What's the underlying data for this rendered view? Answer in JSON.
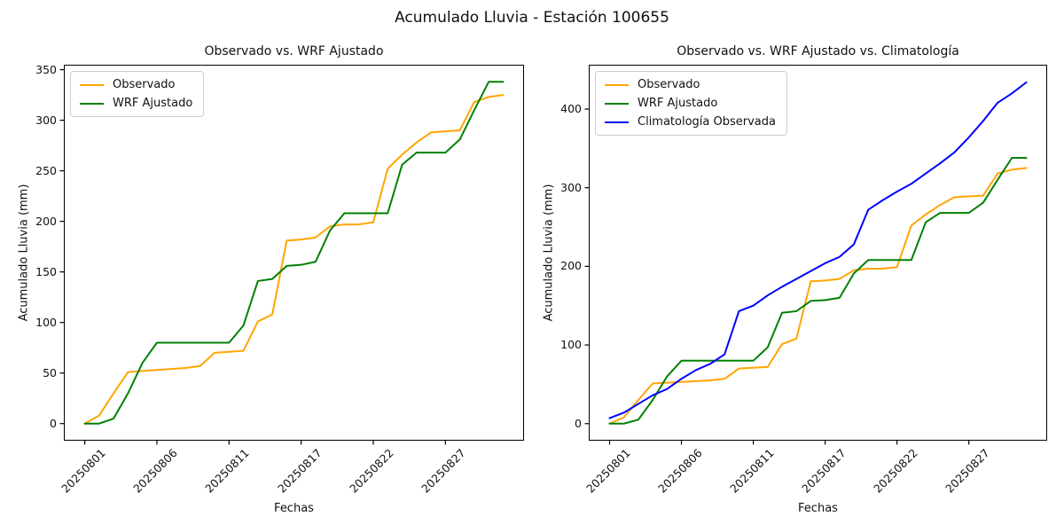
{
  "figure_title": "Acumulado Lluvia - Estación 100655",
  "colors": {
    "observado": "#FFA500",
    "wrf_ajustado": "#008000",
    "climatologia": "#0000FF",
    "spine": "#000000",
    "text": "#111111"
  },
  "chart_data": [
    {
      "type": "line",
      "title": "Observado vs. WRF Ajustado",
      "xlabel": "Fechas",
      "ylabel": "Acumulado Lluvia (mm)",
      "legend_position": "upper left",
      "grid": false,
      "x_tick_indices": [
        0,
        5,
        10,
        15,
        20,
        25
      ],
      "x_tick_labels": [
        "20250801",
        "20250806",
        "20250811",
        "20250817",
        "20250822",
        "20250827"
      ],
      "yticks": [
        0,
        50,
        100,
        150,
        200,
        250,
        300,
        350
      ],
      "ylim": [
        -16.9,
        354.9
      ],
      "series": [
        {
          "name": "Observado",
          "color": "#FFA500",
          "values": [
            0,
            8,
            30,
            51,
            52,
            53,
            54,
            55,
            57,
            70,
            71,
            72,
            101,
            108,
            181,
            182,
            184,
            195,
            197,
            197,
            199,
            252,
            266,
            278,
            288,
            289,
            290,
            318,
            323,
            325
          ]
        },
        {
          "name": "WRF Ajustado",
          "color": "#008000",
          "values": [
            0,
            0,
            5,
            30,
            60,
            80,
            80,
            80,
            80,
            80,
            80,
            97,
            141,
            143,
            156,
            157,
            160,
            191,
            208,
            208,
            208,
            208,
            256,
            268,
            268,
            268,
            281,
            310,
            338,
            338
          ]
        }
      ]
    },
    {
      "type": "line",
      "title": "Observado vs. WRF Ajustado vs. Climatología",
      "xlabel": "Fechas",
      "ylabel": "Acumulado Lluvia (mm)",
      "legend_position": "upper left",
      "grid": false,
      "x_tick_indices": [
        0,
        5,
        10,
        15,
        20,
        25
      ],
      "x_tick_labels": [
        "20250801",
        "20250806",
        "20250811",
        "20250817",
        "20250822",
        "20250827"
      ],
      "yticks": [
        0,
        100,
        200,
        300,
        400
      ],
      "ylim": [
        -21.7,
        456.4
      ],
      "series": [
        {
          "name": "Observado",
          "color": "#FFA500",
          "values": [
            0,
            8,
            30,
            51,
            52,
            53,
            54,
            55,
            57,
            70,
            71,
            72,
            101,
            108,
            181,
            182,
            184,
            195,
            197,
            197,
            199,
            252,
            266,
            278,
            288,
            289,
            290,
            318,
            323,
            325
          ]
        },
        {
          "name": "WRF Ajustado",
          "color": "#008000",
          "values": [
            0,
            0,
            5,
            30,
            60,
            80,
            80,
            80,
            80,
            80,
            80,
            97,
            141,
            143,
            156,
            157,
            160,
            191,
            208,
            208,
            208,
            208,
            256,
            268,
            268,
            268,
            281,
            310,
            338,
            338
          ]
        },
        {
          "name": "Climatología Observada",
          "color": "#0000FF",
          "values": [
            7,
            14,
            25,
            36,
            44,
            57,
            68,
            76,
            88,
            143,
            150,
            163,
            174,
            184,
            194,
            204,
            212,
            228,
            272,
            284,
            295,
            305,
            318,
            331,
            345,
            364,
            385,
            408,
            420,
            434
          ]
        }
      ]
    }
  ]
}
